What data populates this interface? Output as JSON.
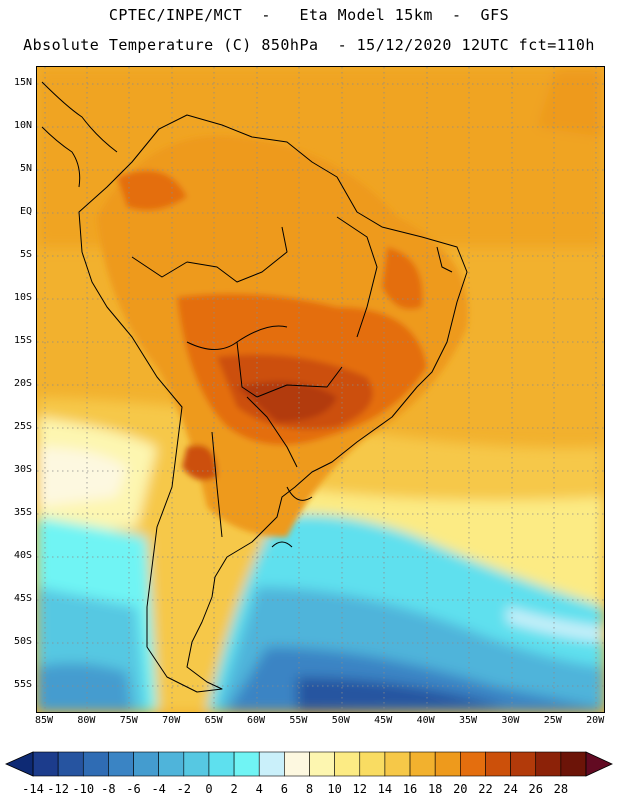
{
  "titles": {
    "line1": "CPTEC/INPE/MCT  -   Eta Model 15km  -  GFS",
    "line2": "Absolute Temperature (C) 850hPa  - 15/12/2020 12UTC fct=110h"
  },
  "lat_labels": [
    "15N",
    "10N",
    "5N",
    "EQ",
    "5S",
    "10S",
    "15S",
    "20S",
    "25S",
    "30S",
    "35S",
    "40S",
    "45S",
    "50S",
    "55S"
  ],
  "lon_labels": [
    "85W",
    "80W",
    "75W",
    "70W",
    "65W",
    "60W",
    "55W",
    "50W",
    "45W",
    "40W",
    "35W",
    "30W",
    "25W",
    "20W"
  ],
  "colorbar": {
    "labels": [
      "-14",
      "-12",
      "-10",
      "-8",
      "-6",
      "-4",
      "-2",
      "0",
      "2",
      "4",
      "6",
      "8",
      "10",
      "12",
      "14",
      "16",
      "18",
      "20",
      "22",
      "24",
      "26",
      "28"
    ],
    "colors": [
      "#1c3c8c",
      "#2654a0",
      "#2f6cb4",
      "#3a84c4",
      "#449ccf",
      "#4fb4da",
      "#56c8e2",
      "#5ee0ee",
      "#70f4f4",
      "#caf0fa",
      "#fdf8e0",
      "#fdf6b0",
      "#fceb84",
      "#f9dc62",
      "#f6c848",
      "#f2b12e",
      "#ee9a1c",
      "#e46e0e",
      "#cc500a",
      "#b23a0a",
      "#8c2208",
      "#6c1408"
    ]
  },
  "icons": {
    "left_arrow": "triangle-left-icon",
    "right_arrow": "triangle-right-icon"
  }
}
